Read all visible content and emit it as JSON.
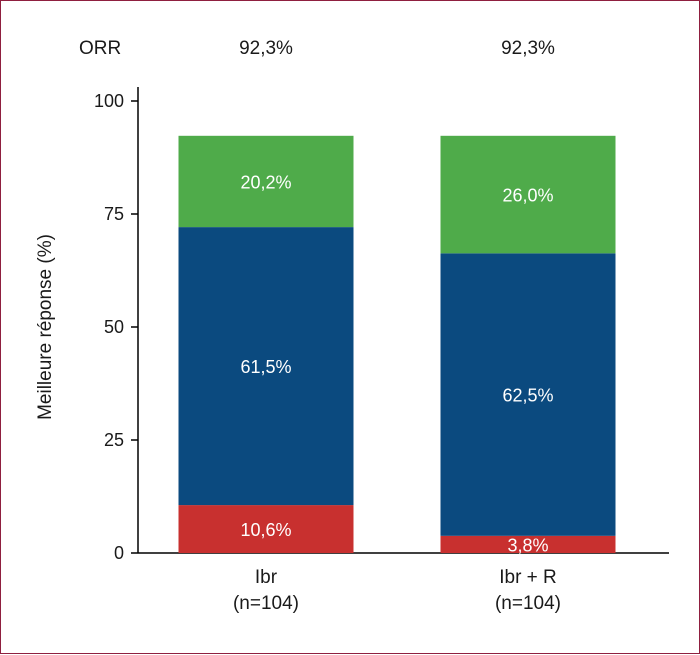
{
  "chart_data": {
    "type": "bar",
    "stacked": true,
    "ylabel": "Meilleure réponse (%)",
    "ylim": [
      0,
      100
    ],
    "yticks": [
      "0",
      "25",
      "50",
      "75",
      "100"
    ],
    "top_row_label": "ORR",
    "categories": [
      {
        "line1": "Ibr",
        "line2": "(n=104)",
        "orr": "92,3%"
      },
      {
        "line1": "Ibr + R",
        "line2": "(n=104)",
        "orr": "92,3%"
      }
    ],
    "series": [
      {
        "color": "#c8302f",
        "values": [
          10.6,
          3.8
        ],
        "labels": [
          "10,6%",
          "3,8%"
        ]
      },
      {
        "color": "#0b4a7f",
        "values": [
          61.5,
          62.5
        ],
        "labels": [
          "61,5%",
          "62,5%"
        ]
      },
      {
        "color": "#4fab4a",
        "values": [
          20.2,
          26.0
        ],
        "labels": [
          "20,2%",
          "26,0%"
        ]
      }
    ]
  }
}
